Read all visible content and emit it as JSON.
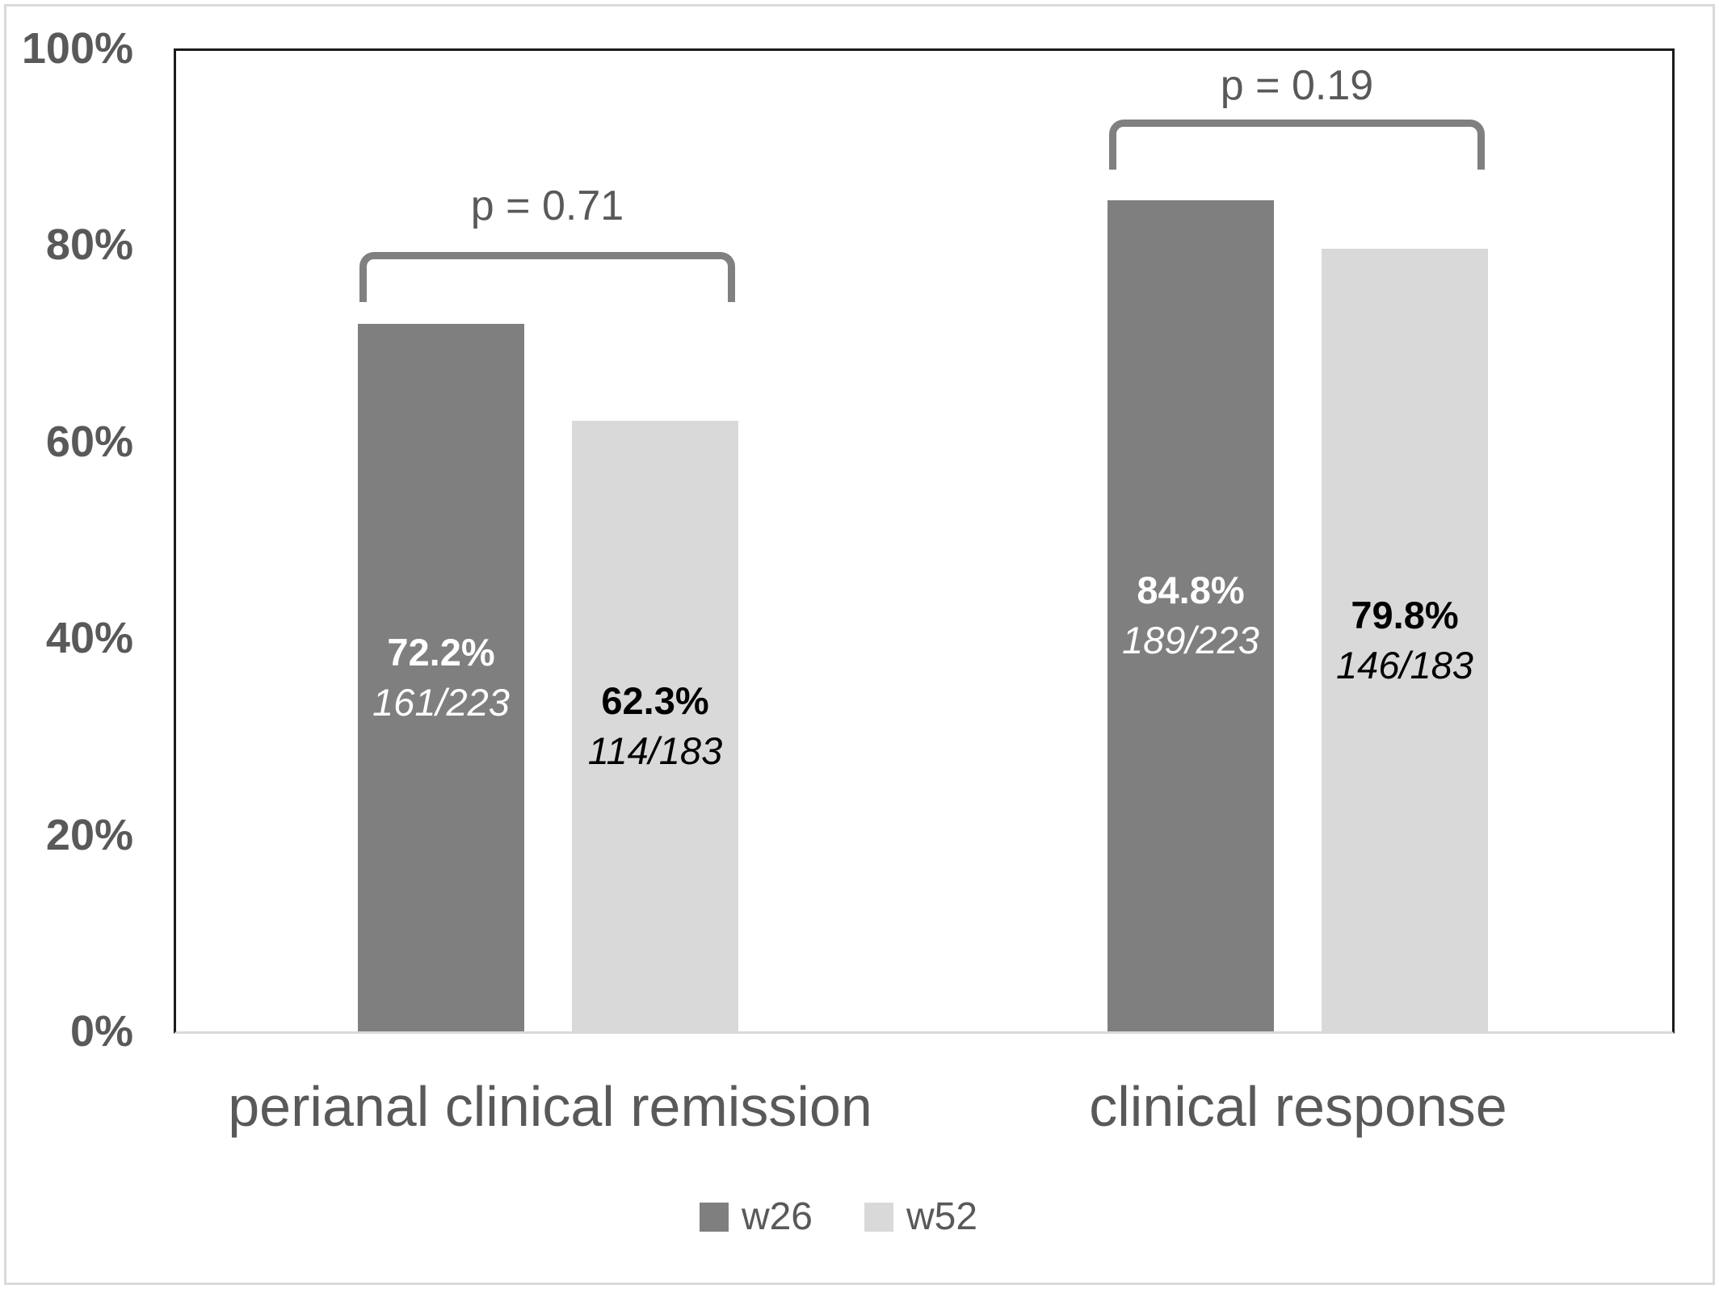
{
  "chart_data": {
    "type": "bar",
    "title": "",
    "xlabel": "",
    "ylabel": "",
    "ylim": [
      0,
      100
    ],
    "grid": false,
    "legend_position": "bottom",
    "y_axis": {
      "ticks": [
        {
          "label": "100%",
          "value": 100
        },
        {
          "label": "80%",
          "value": 80
        },
        {
          "label": "60%",
          "value": 60
        },
        {
          "label": "40%",
          "value": 40
        },
        {
          "label": "20%",
          "value": 20
        },
        {
          "label": "0%",
          "value": 0
        }
      ]
    },
    "categories": [
      "perianal clinical remission",
      "clinical response"
    ],
    "series": [
      {
        "name": "w26",
        "values": [
          72.2,
          84.8
        ],
        "color": "#7f7f7f"
      },
      {
        "name": "w52",
        "values": [
          62.3,
          79.8
        ],
        "color": "#d9d9d9"
      }
    ],
    "groups": [
      {
        "category": "perianal clinical remission",
        "p_label": "p = 0.71",
        "bars": [
          {
            "series": "w26",
            "value": 72.2,
            "pct_label": "72.2%",
            "fraction_label": "161/223",
            "color": "#7f7f7f",
            "label_color": "#ffffff"
          },
          {
            "series": "w52",
            "value": 62.3,
            "pct_label": "62.3%",
            "fraction_label": "114/183",
            "color": "#d9d9d9",
            "label_color": "#000000"
          }
        ]
      },
      {
        "category": "clinical response",
        "p_label": "p = 0.19",
        "bars": [
          {
            "series": "w26",
            "value": 84.8,
            "pct_label": "84.8%",
            "fraction_label": "189/223",
            "color": "#7f7f7f",
            "label_color": "#ffffff"
          },
          {
            "series": "w52",
            "value": 79.8,
            "pct_label": "79.8%",
            "fraction_label": "146/183",
            "color": "#d9d9d9",
            "label_color": "#000000"
          }
        ]
      }
    ],
    "legend": [
      {
        "label": "w26",
        "color": "#7f7f7f"
      },
      {
        "label": "w52",
        "color": "#d9d9d9"
      }
    ],
    "colors": {
      "axis_text": "#595959",
      "bracket": "#808080",
      "plot_border": "#1a1a1a",
      "baseline": "#d9d9d9"
    }
  }
}
